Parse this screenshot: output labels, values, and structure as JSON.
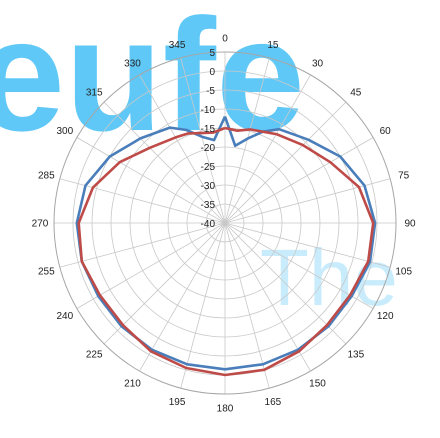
{
  "chart_data": {
    "type": "polar-line",
    "r_ticks": [
      5,
      0,
      -5,
      -10,
      -15,
      -20,
      -25,
      -30,
      -35,
      -40
    ],
    "rlim": [
      -40,
      5
    ],
    "angle_labels": [
      "0",
      "15",
      "30",
      "45",
      "60",
      "75",
      "90",
      "105",
      "120",
      "135",
      "150",
      "165",
      "180",
      "195",
      "210",
      "225",
      "240",
      "255",
      "270",
      "285",
      "300",
      "315",
      "330",
      "345"
    ],
    "angles_deg": [
      0,
      15,
      30,
      45,
      60,
      75,
      90,
      105,
      120,
      135,
      150,
      165,
      180,
      195,
      210,
      225,
      240,
      255,
      270,
      285,
      300,
      315,
      330,
      345,
      360
    ],
    "grid": true,
    "series": [
      {
        "color": "#4a7ebb",
        "angles": [
          0,
          7.5,
          15,
          22.5,
          30,
          45,
          60,
          75,
          90,
          105,
          120,
          135,
          150,
          165,
          180,
          195,
          210,
          225,
          240,
          255,
          270,
          285,
          300,
          315,
          330,
          337.5,
          345,
          352.5,
          360
        ],
        "values": [
          -12,
          -19.5,
          -17,
          -14,
          -11.5,
          -9,
          -5,
          -2,
          -0.5,
          -0.5,
          -1.5,
          -1.5,
          -1.5,
          -1.5,
          -1.5,
          -1.5,
          -1.5,
          -1.5,
          -1.5,
          -1,
          -1,
          -2,
          -5,
          -8.5,
          -11,
          -13.5,
          -16.5,
          -18,
          -12
        ]
      },
      {
        "color": "#be4b48",
        "angles": [
          0,
          7.5,
          15,
          22.5,
          30,
          45,
          60,
          75,
          90,
          105,
          120,
          135,
          150,
          165,
          180,
          195,
          210,
          225,
          240,
          255,
          270,
          285,
          300,
          315,
          330,
          337.5,
          345,
          352.5,
          360
        ],
        "values": [
          -15,
          -15.5,
          -14.5,
          -14,
          -13,
          -11,
          -8,
          -3.5,
          -1,
          -1,
          -2,
          -2,
          -1,
          0,
          0,
          -0.5,
          -1,
          -2,
          -2,
          -1,
          -1.5,
          -4,
          -8,
          -12,
          -14,
          -14.5,
          -15.5,
          -16,
          -15
        ]
      }
    ]
  },
  "watermark": {
    "color": "#4fc3f7",
    "big_text": "eufe",
    "small_text": "The"
  }
}
